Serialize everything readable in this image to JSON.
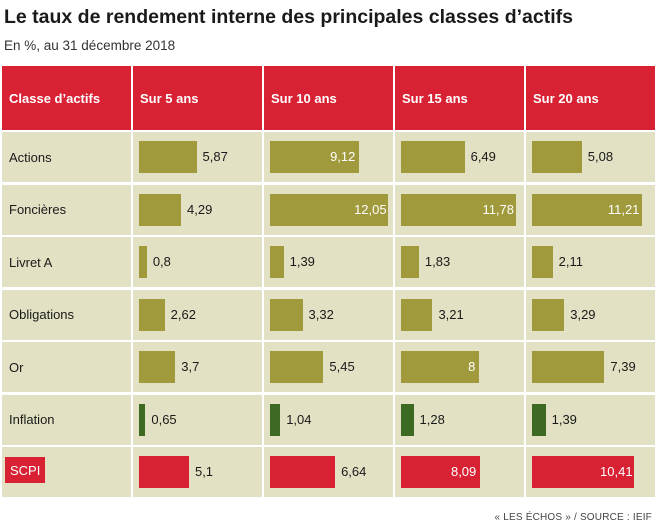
{
  "header": {
    "title": "Le taux de rendement interne des principales classes d’actifs",
    "subtitle": "En %, au 31 décembre 2018"
  },
  "footer": {
    "source": "« LES ÉCHOS » / SOURCE : IEIF"
  },
  "colors": {
    "header_bg": "#d82234",
    "row_bg": "#e3e1c3",
    "bar_olive": "#a09a3c",
    "bar_inflation": "#3d6a22",
    "bar_scpi": "#d82234"
  },
  "chart_data": {
    "type": "table",
    "columns": [
      "Classe d’actifs",
      "Sur 5 ans",
      "Sur 10 ans",
      "Sur 15 ans",
      "Sur 20 ans"
    ],
    "rows": [
      {
        "label": "Actions",
        "values": [
          5.87,
          9.12,
          6.49,
          5.08
        ],
        "labels": [
          "5,87",
          "9,12",
          "6,49",
          "5,08"
        ],
        "color": "olive"
      },
      {
        "label": "Foncières",
        "values": [
          4.29,
          12.05,
          11.78,
          11.21
        ],
        "labels": [
          "4,29",
          "12,05",
          "11,78",
          "11,21"
        ],
        "color": "olive"
      },
      {
        "label": "Livret A",
        "values": [
          0.8,
          1.39,
          1.83,
          2.11
        ],
        "labels": [
          "0,8",
          "1,39",
          "1,83",
          "2,11"
        ],
        "color": "olive"
      },
      {
        "label": "Obligations",
        "values": [
          2.62,
          3.32,
          3.21,
          3.29
        ],
        "labels": [
          "2,62",
          "3,32",
          "3,21",
          "3,29"
        ],
        "color": "olive"
      },
      {
        "label": "Or",
        "values": [
          3.7,
          5.45,
          8,
          7.39
        ],
        "labels": [
          "3,7",
          "5,45",
          "8",
          "7,39"
        ],
        "color": "olive"
      },
      {
        "label": "Inflation",
        "values": [
          0.65,
          1.04,
          1.28,
          1.39
        ],
        "labels": [
          "0,65",
          "1,04",
          "1,28",
          "1,39"
        ],
        "color": "inflation"
      },
      {
        "label": "SCPI",
        "values": [
          5.1,
          6.64,
          8.09,
          10.41
        ],
        "labels": [
          "5,1",
          "6,64",
          "8,09",
          "10,41"
        ],
        "color": "scpi"
      }
    ],
    "value_unit": "%"
  }
}
